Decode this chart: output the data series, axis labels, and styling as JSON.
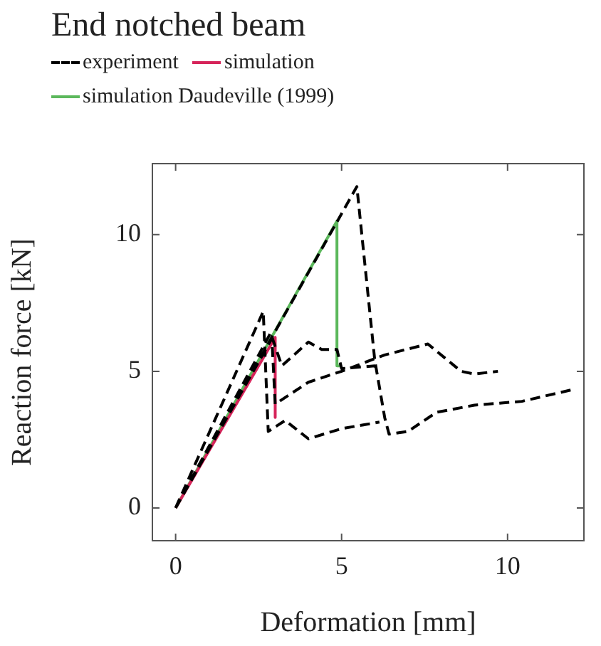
{
  "chart_data": {
    "type": "line",
    "title": "End notched beam",
    "xlabel": "Deformation [mm]",
    "ylabel": "Reaction force [kN]",
    "legend": "top",
    "grid": false,
    "marker": "none",
    "xlim": [
      -0.7,
      12.3
    ],
    "ylim": [
      -1.2,
      12.6
    ],
    "xticks": [
      0,
      5,
      10
    ],
    "yticks": [
      0,
      5,
      10
    ],
    "series": [
      {
        "name": "experiment",
        "color": "#000000",
        "line_style": "dashed",
        "x": [
          0,
          5.46,
          6.0,
          6.3,
          6.43,
          7.0,
          7.86,
          9.0,
          10.43,
          12.0,
          null,
          0,
          2.64,
          2.79,
          3.3,
          4.0,
          5.0,
          6.14,
          null,
          0,
          2.86,
          3.2,
          4.0,
          4.4,
          4.86,
          5.0,
          6.0,
          6.1,
          null,
          0,
          2.9,
          3.0,
          4.0,
          5.0,
          6.3,
          7.6,
          8.6,
          9.0,
          9.71
        ],
        "values": [
          0,
          11.76,
          5.4,
          3.3,
          2.7,
          2.8,
          3.5,
          3.76,
          3.9,
          4.34,
          null,
          0,
          7.19,
          2.8,
          3.2,
          2.53,
          2.9,
          3.14,
          null,
          0,
          6.4,
          5.2,
          6.07,
          5.8,
          5.8,
          5.1,
          5.2,
          5.0,
          null,
          0,
          6.2,
          3.8,
          4.6,
          5.0,
          5.6,
          6.0,
          5.0,
          4.9,
          5.0
        ]
      },
      {
        "name": "simulation",
        "color": "#d6245a",
        "line_style": "solid",
        "x": [
          0,
          3.0,
          3.0
        ],
        "values": [
          0,
          6.24,
          3.31
        ]
      },
      {
        "name": "simulation Daudeville (1999)",
        "color": "#5cb85c",
        "line_style": "solid",
        "x": [
          0,
          4.86,
          4.86,
          4.95
        ],
        "values": [
          0,
          10.5,
          5.2,
          5.2
        ]
      }
    ]
  }
}
